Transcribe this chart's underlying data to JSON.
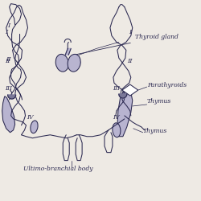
{
  "bg_color": "#eeeae4",
  "line_color": "#2a2850",
  "fill_color": "#b8b4d0",
  "dark_fill": "#7a7898",
  "label_fontsize": 5.5,
  "roman_fontsize": 6.0,
  "labels": {
    "thyroid_gland": "Thyroid gland",
    "parathyroids": "Parathyroids",
    "thymus1": "Thymus",
    "thymus2": "Thymus",
    "ultimo": "Ultimo-branchial body"
  }
}
